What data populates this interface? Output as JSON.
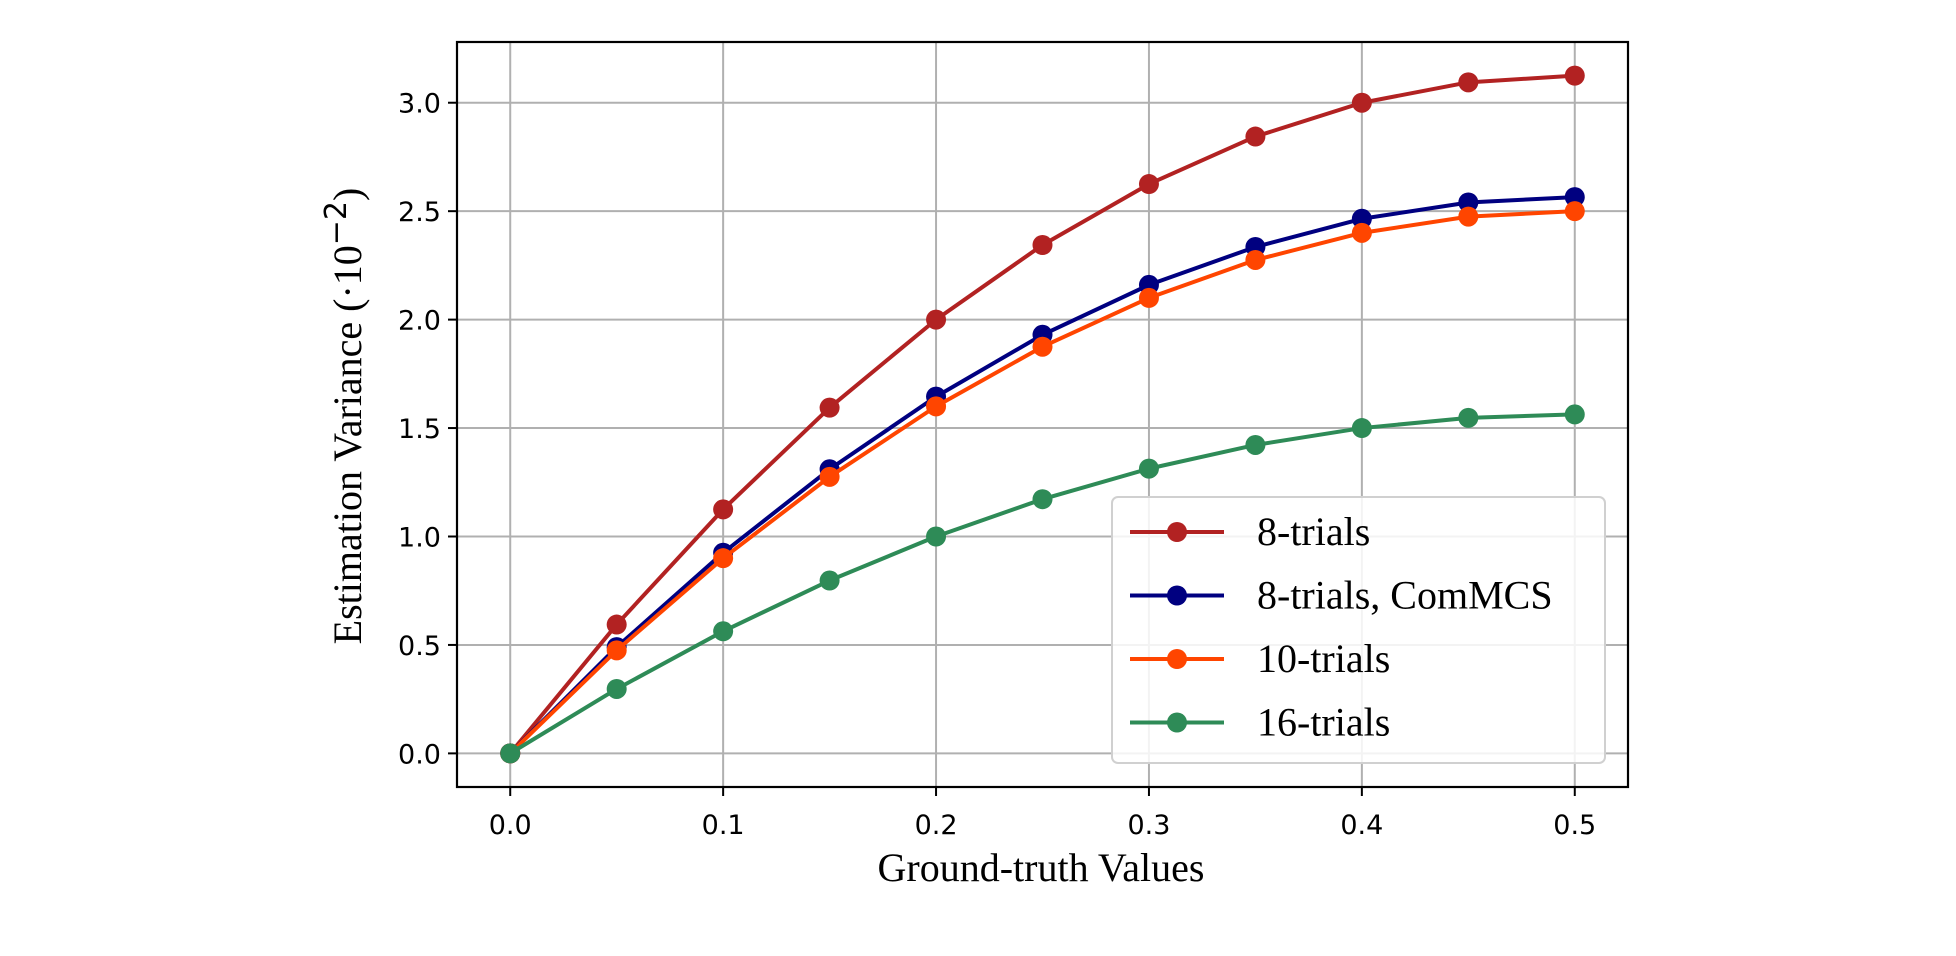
{
  "chart_data": {
    "type": "line",
    "xlabel": "Ground-truth Values",
    "ylabel": "Estimation Variance (·10",
    "ylabel_exponent": "−2",
    "ylabel_close": ")",
    "xlim": [
      -0.025,
      0.525
    ],
    "ylim": [
      -0.155,
      3.28
    ],
    "x_ticks": [
      0.0,
      0.1,
      0.2,
      0.3,
      0.4,
      0.5
    ],
    "x_tick_labels": [
      "0.0",
      "0.1",
      "0.2",
      "0.3",
      "0.4",
      "0.5"
    ],
    "y_ticks": [
      0.0,
      0.5,
      1.0,
      1.5,
      2.0,
      2.5,
      3.0
    ],
    "y_tick_labels": [
      "0.0",
      "0.5",
      "1.0",
      "1.5",
      "2.0",
      "2.5",
      "3.0"
    ],
    "grid": true,
    "legend_position": "lower-right",
    "x": [
      0.0,
      0.05,
      0.1,
      0.15,
      0.2,
      0.25,
      0.3,
      0.35,
      0.4,
      0.45,
      0.5
    ],
    "series": [
      {
        "name": "8-trials",
        "color": "#b22222",
        "values": [
          0.0,
          0.594,
          1.125,
          1.594,
          2.0,
          2.344,
          2.625,
          2.844,
          3.0,
          3.094,
          3.125
        ]
      },
      {
        "name": "8-trials, ComMCS",
        "color": "#000080",
        "values": [
          0.0,
          0.49,
          0.925,
          1.31,
          1.645,
          1.93,
          2.16,
          2.335,
          2.465,
          2.54,
          2.565
        ]
      },
      {
        "name": "10-trials",
        "color": "#ff4500",
        "values": [
          0.0,
          0.475,
          0.9,
          1.275,
          1.6,
          1.875,
          2.1,
          2.275,
          2.4,
          2.475,
          2.5
        ]
      },
      {
        "name": "16-trials",
        "color": "#2e8b57",
        "values": [
          0.0,
          0.297,
          0.563,
          0.797,
          1.0,
          1.172,
          1.313,
          1.422,
          1.5,
          1.547,
          1.563
        ]
      }
    ]
  }
}
